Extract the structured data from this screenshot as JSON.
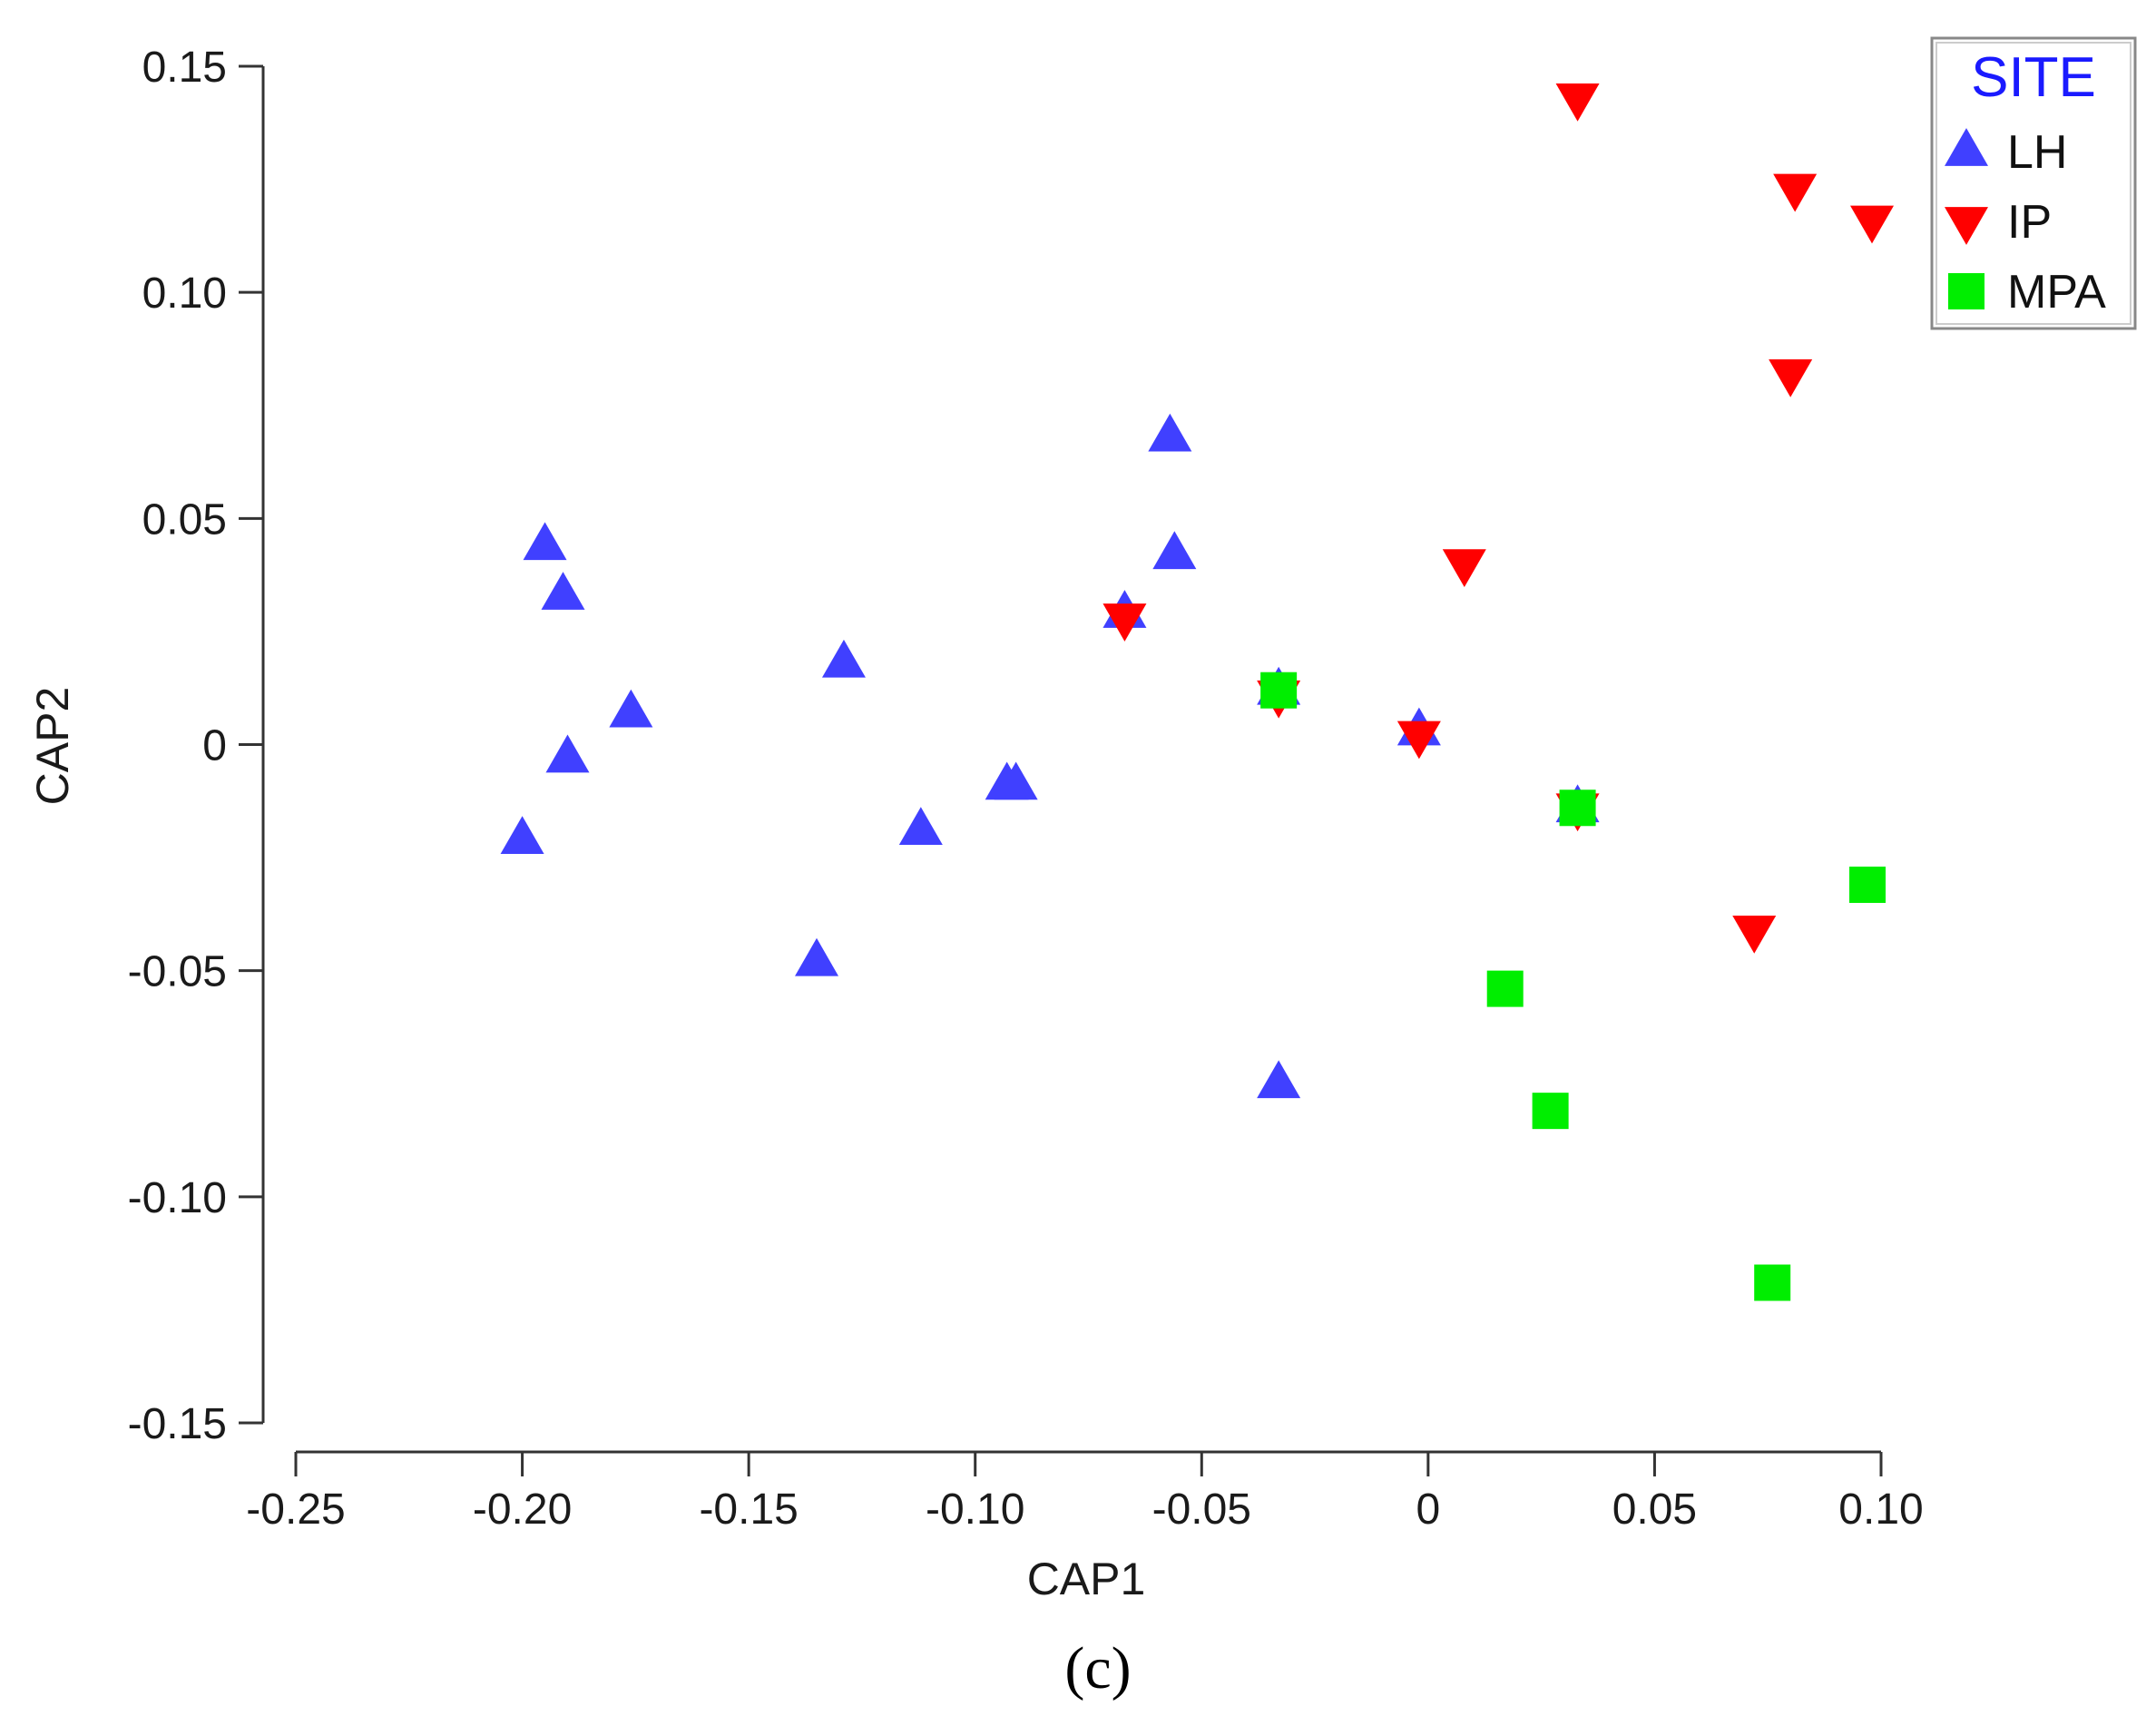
{
  "chart_data": {
    "type": "scatter",
    "title": "",
    "xlabel": "CAP1",
    "ylabel": "CAP2",
    "xlim": [
      -0.25,
      0.1
    ],
    "ylim": [
      -0.15,
      0.15
    ],
    "x_ticks": [
      -0.25,
      -0.2,
      -0.15,
      -0.1,
      -0.05,
      0,
      0.05,
      0.1
    ],
    "x_tick_labels": [
      "-0.25",
      "-0.20",
      "-0.15",
      "-0.10",
      "-0.05",
      "0",
      "0.05",
      "0.10"
    ],
    "y_ticks": [
      0.15,
      0.1,
      0.05,
      0,
      -0.05,
      -0.1,
      -0.15
    ],
    "y_tick_labels": [
      "0.15",
      "0.10",
      "0.05",
      "0",
      "-0.05",
      "-0.10",
      "-0.15"
    ],
    "legend": {
      "title": "SITE",
      "title_color": "#1a1aff",
      "placement": "top-right"
    },
    "caption": "(c)",
    "series": [
      {
        "name": "LH",
        "marker": "triangle-up",
        "color": "#4040ff",
        "points": [
          [
            -0.195,
            0.044
          ],
          [
            -0.191,
            0.033
          ],
          [
            -0.176,
            0.007
          ],
          [
            -0.19,
            -0.003
          ],
          [
            -0.2,
            -0.021
          ],
          [
            -0.129,
            0.018
          ],
          [
            -0.112,
            -0.019
          ],
          [
            -0.093,
            -0.009
          ],
          [
            -0.091,
            -0.009
          ],
          [
            -0.135,
            -0.048
          ],
          [
            -0.067,
            0.029
          ],
          [
            -0.057,
            0.068
          ],
          [
            -0.056,
            0.042
          ],
          [
            -0.033,
            0.012
          ],
          [
            -0.033,
            -0.075
          ],
          [
            -0.002,
            0.003
          ],
          [
            0.033,
            -0.014
          ]
        ]
      },
      {
        "name": "IP",
        "marker": "triangle-down",
        "color": "#ff0000",
        "points": [
          [
            0.033,
            0.143
          ],
          [
            0.081,
            0.123
          ],
          [
            0.098,
            0.116
          ],
          [
            0.08,
            0.082
          ],
          [
            0.008,
            0.04
          ],
          [
            -0.067,
            0.028
          ],
          [
            -0.033,
            0.011
          ],
          [
            -0.002,
            0.002
          ],
          [
            0.033,
            -0.014
          ],
          [
            0.072,
            -0.041
          ]
        ]
      },
      {
        "name": "MPA",
        "marker": "square",
        "color": "#00ee00",
        "points": [
          [
            -0.033,
            0.012
          ],
          [
            0.033,
            -0.014
          ],
          [
            0.097,
            -0.031
          ],
          [
            0.017,
            -0.054
          ],
          [
            0.027,
            -0.081
          ],
          [
            0.076,
            -0.119
          ]
        ]
      }
    ]
  }
}
